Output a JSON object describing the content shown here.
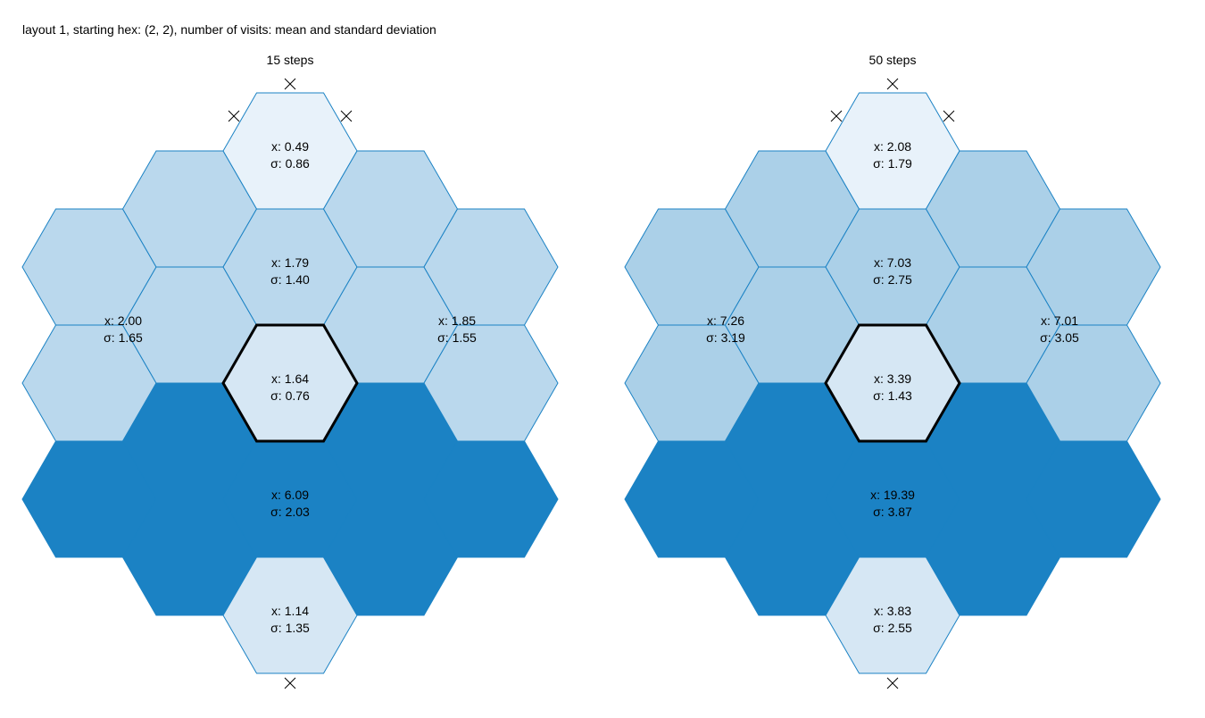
{
  "title": "layout 1, starting hex: (2, 2), number of visits: mean and standard deviation",
  "colors": {
    "lightest": "#e8f2fa",
    "light": "#d6e7f4",
    "mid": "#bad8ed",
    "mid2": "#abd0e8",
    "dark": "#1b82c4",
    "stroke": "#1b82c4",
    "start_outline": "#000000"
  },
  "marker_icon": "x-mark-icon",
  "panels": [
    {
      "title": "15 steps",
      "regions": {
        "top": {
          "mean": "x: 0.49",
          "sd": "σ: 0.86"
        },
        "upper_center": {
          "mean": "x: 1.79",
          "sd": "σ: 1.40"
        },
        "left": {
          "mean": "x: 2.00",
          "sd": "σ: 1.65"
        },
        "right": {
          "mean": "x: 1.85",
          "sd": "σ: 1.55"
        },
        "start": {
          "mean": "x: 1.64",
          "sd": "σ: 0.76"
        },
        "band": {
          "mean": "x: 6.09",
          "sd": "σ: 2.03"
        },
        "bottom": {
          "mean": "x: 1.14",
          "sd": "σ: 1.35"
        }
      }
    },
    {
      "title": "50 steps",
      "regions": {
        "top": {
          "mean": "x: 2.08",
          "sd": "σ: 1.79"
        },
        "upper_center": {
          "mean": "x: 7.03",
          "sd": "σ: 2.75"
        },
        "left": {
          "mean": "x: 7.26",
          "sd": "σ: 3.19"
        },
        "right": {
          "mean": "x: 7.01",
          "sd": "σ: 3.05"
        },
        "start": {
          "mean": "x: 3.39",
          "sd": "σ: 1.43"
        },
        "band": {
          "mean": "x: 19.39",
          "sd": "σ: 3.87"
        },
        "bottom": {
          "mean": "x: 3.83",
          "sd": "σ: 2.55"
        }
      }
    }
  ]
}
